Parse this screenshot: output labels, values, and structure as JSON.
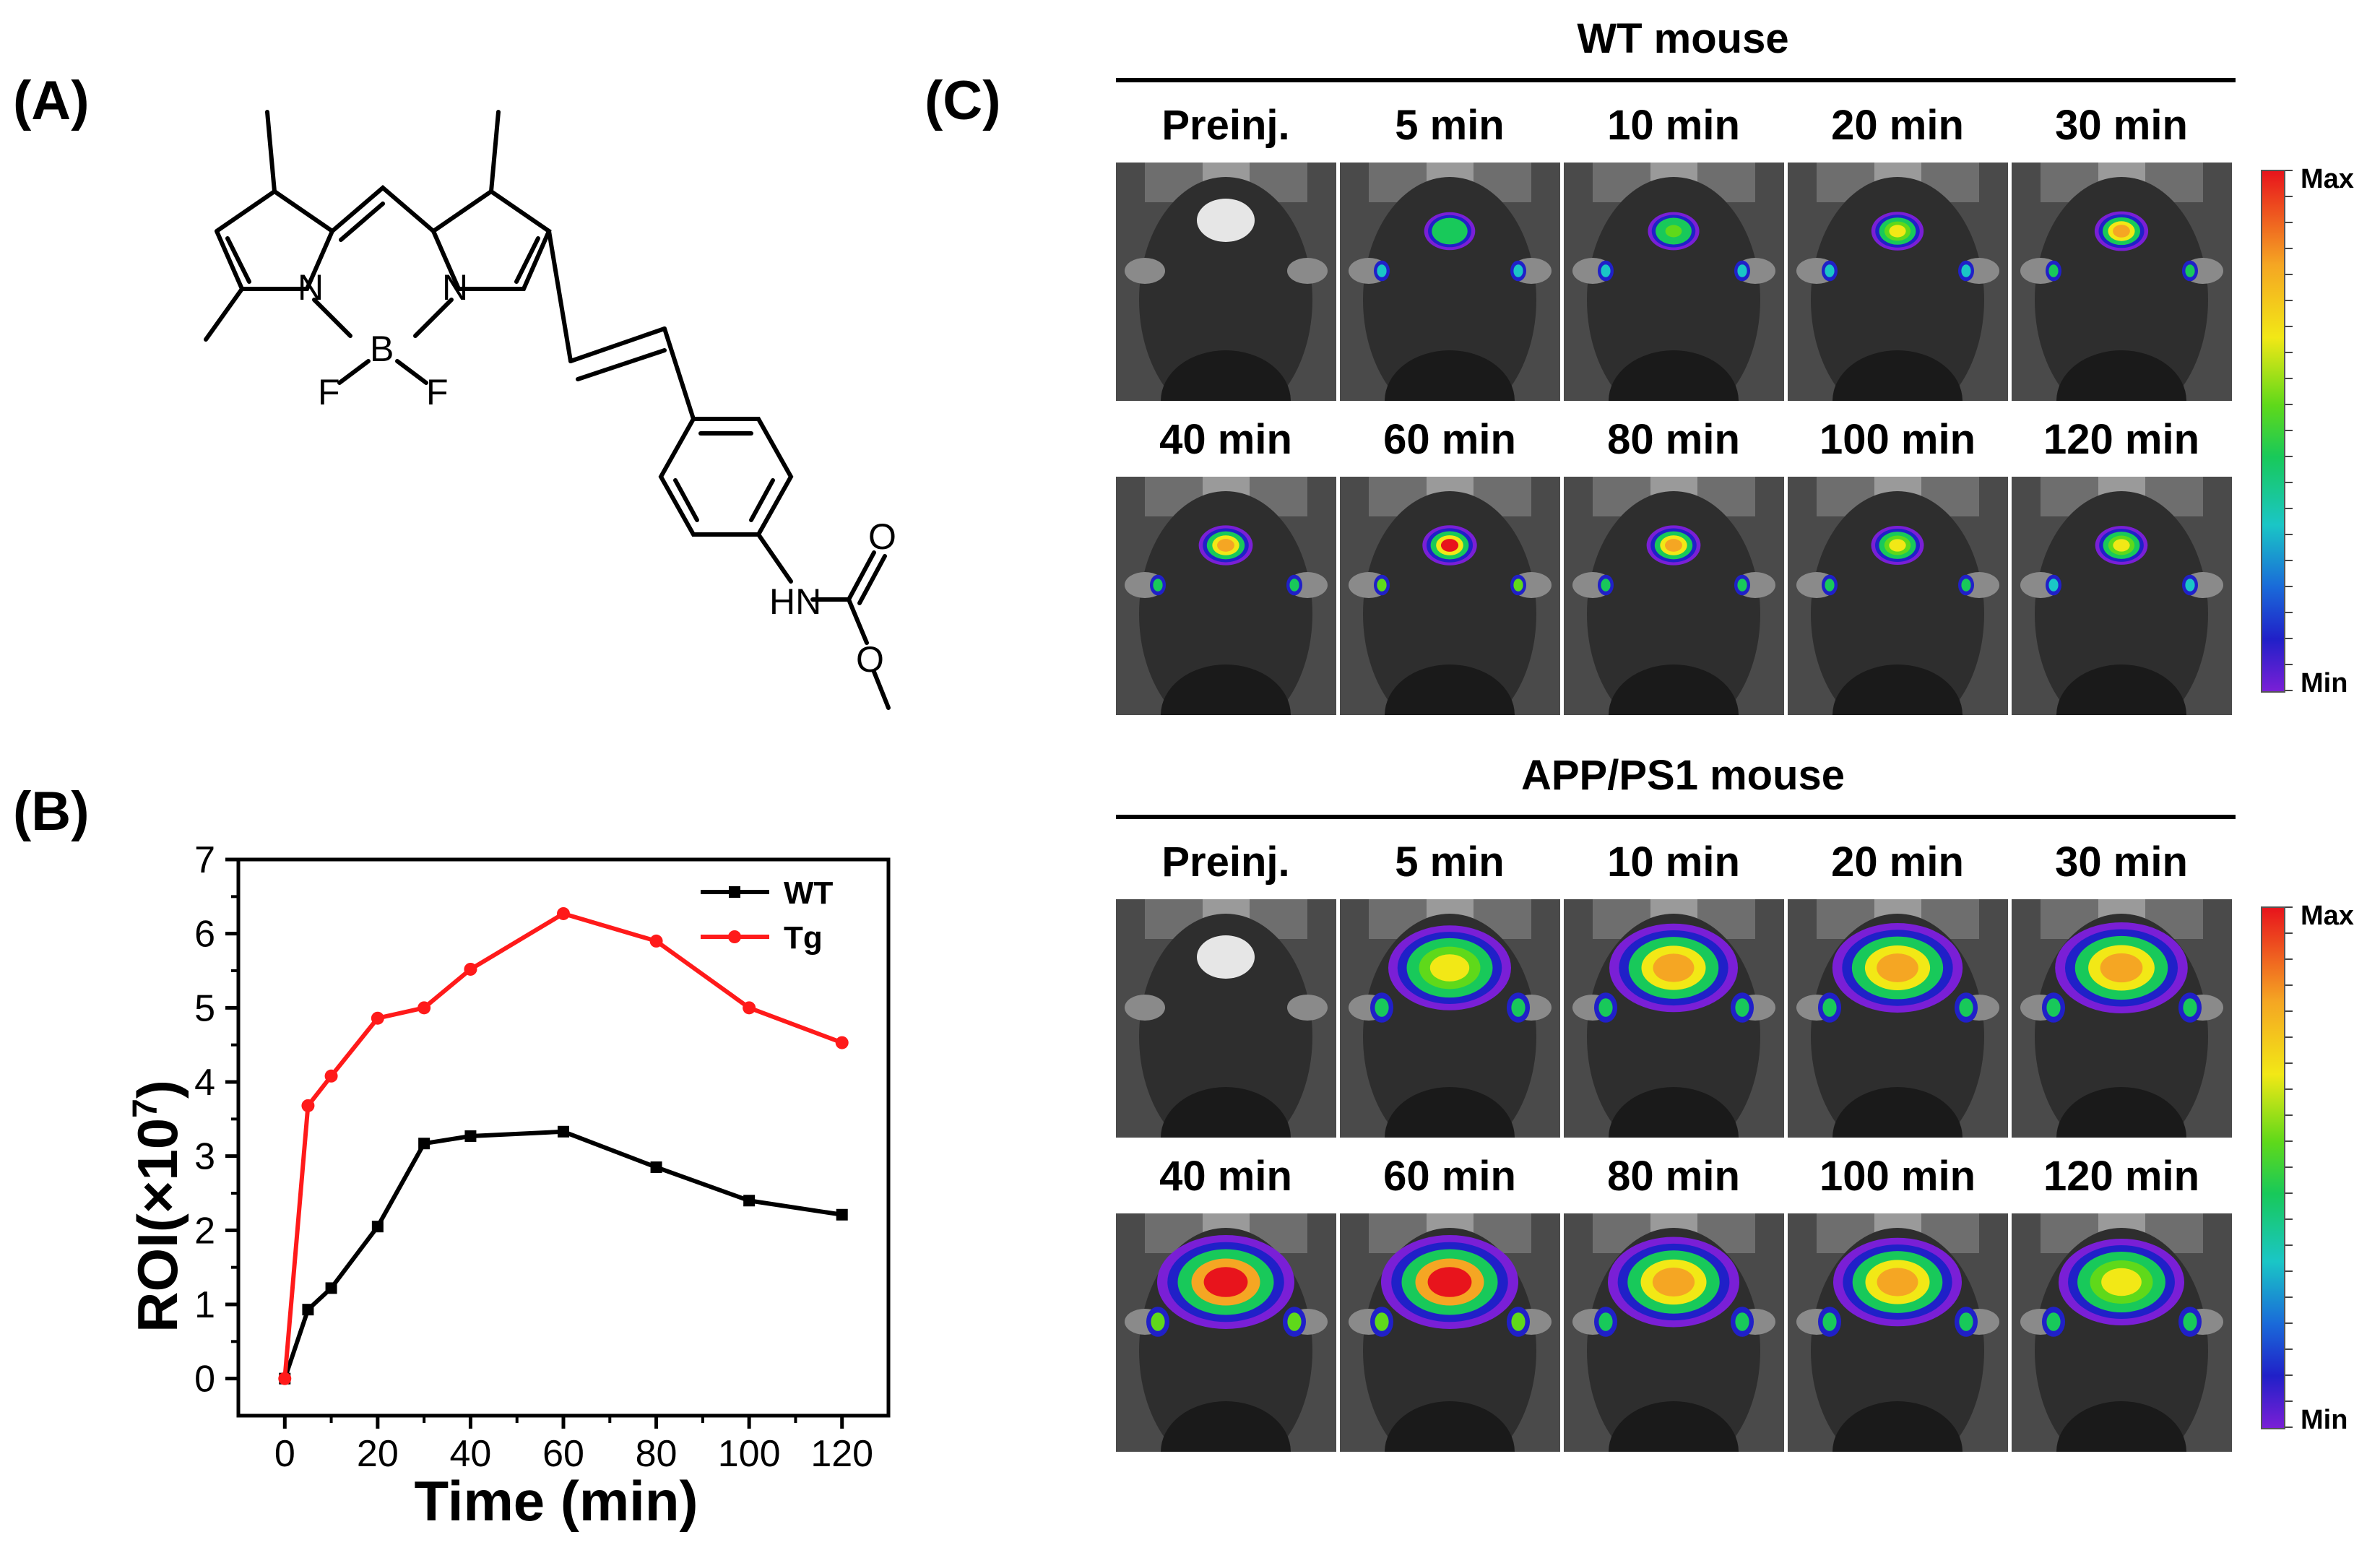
{
  "panels": {
    "a": "(A)",
    "b": "(B)",
    "c": "(C)"
  },
  "structure": {
    "atoms": {
      "n1": "N",
      "n2": "N",
      "b": "B",
      "f1": "F",
      "f2": "F",
      "hn": "HN",
      "o1": "O",
      "o2": "O"
    }
  },
  "chart_data": {
    "type": "line",
    "title": "",
    "xlabel": "Time (min)",
    "ylabel_prefix": "ROI(×10",
    "ylabel_exp": "7",
    "ylabel_suffix": ")",
    "x": [
      0,
      5,
      10,
      20,
      30,
      40,
      60,
      80,
      100,
      120
    ],
    "xlim": [
      -10,
      130
    ],
    "ylim": [
      -0.5,
      7
    ],
    "xticks": [
      "0",
      "20",
      "40",
      "60",
      "80",
      "100",
      "120"
    ],
    "xtick_values": [
      0,
      20,
      40,
      60,
      80,
      100,
      120
    ],
    "yticks": [
      "0",
      "1",
      "2",
      "3",
      "4",
      "5",
      "6",
      "7"
    ],
    "ytick_values": [
      0,
      1,
      2,
      3,
      4,
      5,
      6,
      7
    ],
    "legend_position": "top-right",
    "series": [
      {
        "name": "WT",
        "color": "#000000",
        "marker": "square",
        "values": [
          0,
          0.93,
          1.22,
          2.05,
          3.17,
          3.27,
          3.33,
          2.85,
          2.4,
          2.21
        ]
      },
      {
        "name": "Tg",
        "color": "#ff1a1a",
        "marker": "circle",
        "values": [
          0,
          3.68,
          4.08,
          4.86,
          5.0,
          5.52,
          6.27,
          5.9,
          5.0,
          4.53
        ]
      }
    ]
  },
  "imaging": {
    "colorbar": {
      "max": "Max",
      "min": "Min"
    },
    "groups": [
      {
        "title": "WT mouse",
        "rows": [
          [
            "Preinj.",
            "5 min",
            "10 min",
            "20 min",
            "30 min"
          ],
          [
            "40 min",
            "60 min",
            "80 min",
            "100 min",
            "120 min"
          ]
        ],
        "intensity": [
          [
            0,
            0.55,
            0.6,
            0.7,
            0.85
          ],
          [
            0.9,
            0.95,
            0.9,
            0.75,
            0.72
          ]
        ]
      },
      {
        "title": "APP/PS1 mouse",
        "rows": [
          [
            "Preinj.",
            "5 min",
            "10 min",
            "20 min",
            "30 min"
          ],
          [
            "40 min",
            "60 min",
            "80 min",
            "100 min",
            "120 min"
          ]
        ],
        "intensity": [
          [
            0,
            0.75,
            0.85,
            0.88,
            0.92
          ],
          [
            1.0,
            1.0,
            0.9,
            0.85,
            0.8
          ]
        ]
      }
    ]
  }
}
